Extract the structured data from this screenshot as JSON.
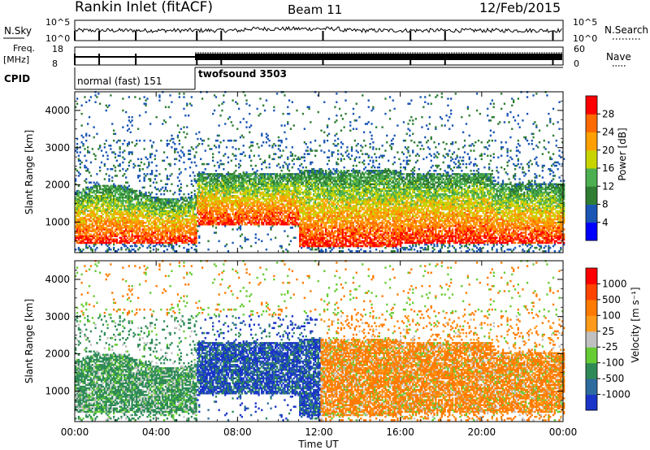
{
  "header": {
    "title": "Rankin Inlet (fitACF)",
    "beam": "Beam 11",
    "date": "12/Feb/2015"
  },
  "top_panels": {
    "noise_left_label": "N.Sky",
    "noise_right_label": "N.Search",
    "noise_left_ticks": [
      "10^5",
      "10^0"
    ],
    "noise_right_ticks": [
      "10^5",
      "10^0"
    ],
    "freq_left_label_1": "Freq.",
    "freq_left_label_2": "[MHz]",
    "freq_left_ticks": [
      "18",
      "8"
    ],
    "nave_right_label": "Nave",
    "nave_right_ticks": [
      "60",
      "0"
    ],
    "cpid_label": "CPID",
    "cpid_segments": [
      {
        "name": "normal (fast) 151",
        "start": 0,
        "end": 6
      },
      {
        "name": "twofsound 3503",
        "start": 6,
        "end": 24
      }
    ]
  },
  "colors": {
    "power": [
      "#0000ff",
      "#1a56b4",
      "#2e7d32",
      "#4caf50",
      "#c8d400",
      "#ffa000",
      "#ff6a00",
      "#ff0000"
    ],
    "velocity": [
      "#1a35c8",
      "#2e6b9e",
      "#2e8b57",
      "#66cc33",
      "#c0c0c0",
      "#ff9a1a",
      "#ff7a00",
      "#ff4400",
      "#ff0000"
    ]
  },
  "chart_data": [
    {
      "type": "heatmap",
      "panel": "power",
      "ylabel": "Slant Range [km]",
      "xlabel": "",
      "ylim": [
        180,
        4500
      ],
      "xlim": [
        0,
        24
      ],
      "y_ticks": [
        1000,
        2000,
        3000,
        4000
      ],
      "colorbar": {
        "label": "Power [dB]",
        "ticks": [
          "4",
          "8",
          "12",
          "16",
          "20",
          "24",
          "28"
        ]
      }
    },
    {
      "type": "heatmap",
      "panel": "velocity",
      "ylabel": "Slant Range [km]",
      "xlabel": "Time UT",
      "ylim": [
        180,
        4500
      ],
      "xlim": [
        0,
        24
      ],
      "y_ticks": [
        1000,
        2000,
        3000,
        4000
      ],
      "x_tick_labels": [
        "00:00",
        "04:00",
        "08:00",
        "12:00",
        "16:00",
        "20:00",
        "00:00"
      ],
      "colorbar": {
        "label": "Velocity [m s⁻¹]",
        "ticks": [
          "1000",
          "500",
          "100",
          "25",
          "-25",
          "-100",
          "-500",
          "-1000"
        ]
      }
    }
  ]
}
